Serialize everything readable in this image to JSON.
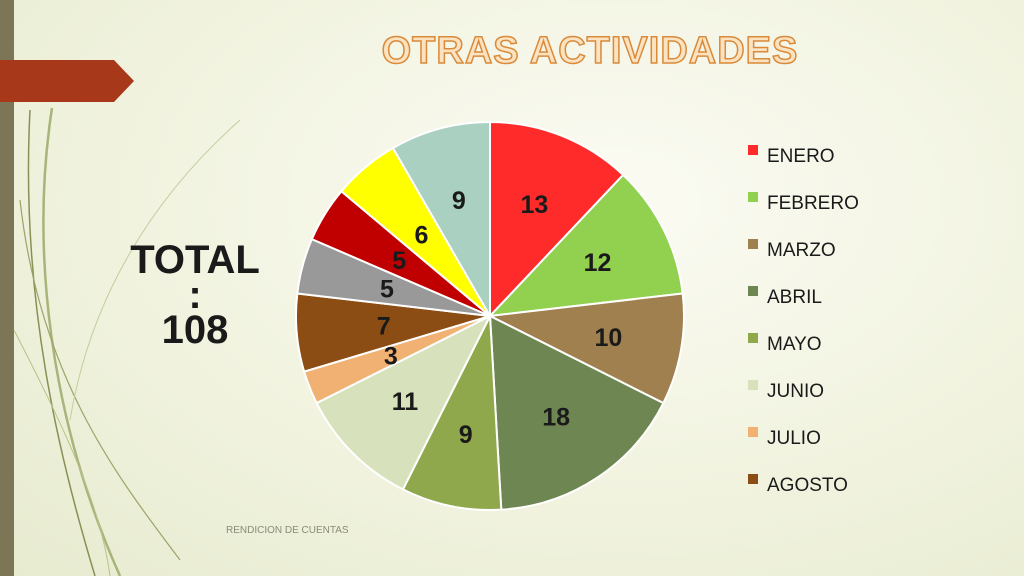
{
  "title": "OTRAS ACTIVIDADES",
  "total": {
    "label": "TOTAL",
    "colon": ":",
    "value": "108"
  },
  "footer": "RENDICION DE CUENTAS",
  "colors": {
    "left_bar": "#7c7657",
    "ribbon": "#a8381a"
  },
  "chart_data": {
    "type": "pie",
    "title": "OTRAS ACTIVIDADES",
    "slices": [
      {
        "name": "ENERO",
        "value": 13,
        "color": "#ff2b2b"
      },
      {
        "name": "FEBRERO",
        "value": 12,
        "color": "#92d050"
      },
      {
        "name": "MARZO",
        "value": 10,
        "color": "#a0804e"
      },
      {
        "name": "ABRIL",
        "value": 18,
        "color": "#6e8752"
      },
      {
        "name": "MAYO",
        "value": 9,
        "color": "#8fa84c"
      },
      {
        "name": "JUNIO",
        "value": 11,
        "color": "#d7e2bc"
      },
      {
        "name": "JULIO",
        "value": 3,
        "color": "#f0b173"
      },
      {
        "name": "AGOSTO",
        "value": 7,
        "color": "#8b4d13"
      },
      {
        "name": "",
        "value": 5,
        "color": "#999999"
      },
      {
        "name": "",
        "value": 5,
        "color": "#c00000"
      },
      {
        "name": "",
        "value": 6,
        "color": "#ffff00"
      },
      {
        "name": "",
        "value": 9,
        "color": "#a9d0c0"
      }
    ],
    "legend": [
      "ENERO",
      "FEBRERO",
      "MARZO",
      "ABRIL",
      "MAYO",
      "JUNIO",
      "JULIO",
      "AGOSTO"
    ],
    "legend_position": "right"
  }
}
